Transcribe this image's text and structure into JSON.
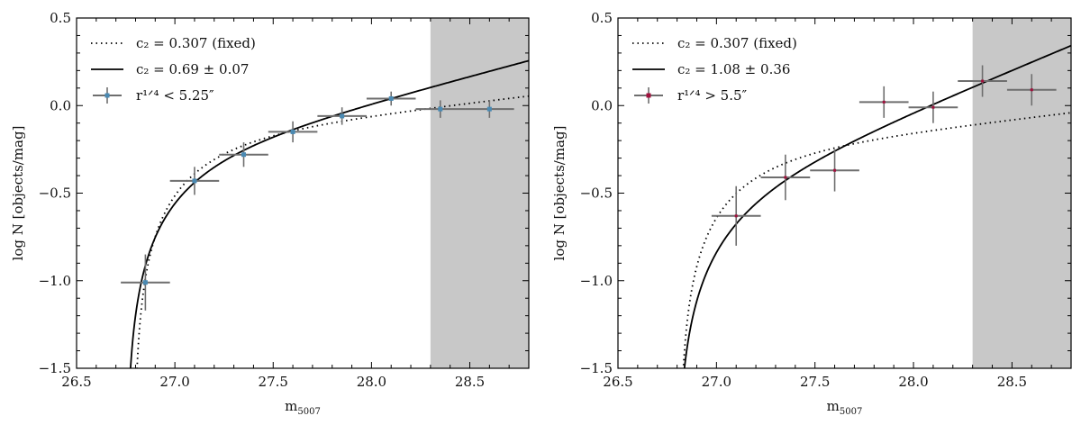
{
  "chart_data": [
    {
      "type": "scatter",
      "xlabel": "m",
      "xlabel_sub": "5007",
      "ylabel": "log N [objects/mag]",
      "xlim": [
        26.5,
        28.8
      ],
      "ylim": [
        -1.5,
        0.5
      ],
      "xticks": [
        "26.5",
        "27.0",
        "27.5",
        "28.0",
        "28.5"
      ],
      "yticks": [
        "-1.5",
        "-1.0",
        "-0.5",
        "0.0",
        "0.5"
      ],
      "grid": false,
      "legend_placement": "top-left",
      "shaded_region": {
        "x": [
          28.3,
          28.8
        ],
        "color": "#c8c8c8"
      },
      "colors": {
        "points": "#4a8ab3",
        "errorbars": "#6e6e6e",
        "lines": "#000000"
      },
      "lines": [
        {
          "style": "dotted",
          "label": "c₂ = 0.307 (fixed)",
          "c2": 0.307
        },
        {
          "style": "solid",
          "label": "c₂ = 0.69 ± 0.07",
          "c2": 0.69
        }
      ],
      "points_label": "r¹ᐟ⁴ < 5.25″",
      "points": [
        {
          "x": 26.85,
          "y": -1.01,
          "xerr": 0.125,
          "yerr": 0.16
        },
        {
          "x": 27.1,
          "y": -0.43,
          "xerr": 0.125,
          "yerr": 0.08
        },
        {
          "x": 27.35,
          "y": -0.28,
          "xerr": 0.125,
          "yerr": 0.07
        },
        {
          "x": 27.6,
          "y": -0.15,
          "xerr": 0.125,
          "yerr": 0.06
        },
        {
          "x": 27.85,
          "y": -0.06,
          "xerr": 0.125,
          "yerr": 0.05
        },
        {
          "x": 28.1,
          "y": 0.04,
          "xerr": 0.125,
          "yerr": 0.04
        },
        {
          "x": 28.35,
          "y": -0.02,
          "xerr": 0.125,
          "yerr": 0.05
        },
        {
          "x": 28.6,
          "y": -0.02,
          "xerr": 0.125,
          "yerr": 0.05
        }
      ]
    },
    {
      "type": "scatter",
      "xlabel": "m",
      "xlabel_sub": "5007",
      "ylabel": "log N [objects/mag]",
      "xlim": [
        26.5,
        28.8
      ],
      "ylim": [
        -1.5,
        0.5
      ],
      "xticks": [
        "26.5",
        "27.0",
        "27.5",
        "28.0",
        "28.5"
      ],
      "yticks": [
        "-1.5",
        "-1.0",
        "-0.5",
        "0.0",
        "0.5"
      ],
      "grid": false,
      "legend_placement": "top-left",
      "shaded_region": {
        "x": [
          28.3,
          28.8
        ],
        "color": "#c8c8c8"
      },
      "colors": {
        "points": "#a0103c",
        "errorbars": "#6e6e6e",
        "lines": "#000000"
      },
      "lines": [
        {
          "style": "dotted",
          "label": "c₂ = 0.307 (fixed)",
          "c2": 0.307
        },
        {
          "style": "solid",
          "label": "c₂ = 1.08 ± 0.36",
          "c2": 1.08
        }
      ],
      "points_label": "r¹ᐟ⁴ > 5.5″",
      "points": [
        {
          "x": 27.1,
          "y": -0.63,
          "xerr": 0.125,
          "yerr": 0.17
        },
        {
          "x": 27.35,
          "y": -0.41,
          "xerr": 0.125,
          "yerr": 0.13
        },
        {
          "x": 27.6,
          "y": -0.37,
          "xerr": 0.125,
          "yerr": 0.12
        },
        {
          "x": 27.85,
          "y": 0.02,
          "xerr": 0.125,
          "yerr": 0.09
        },
        {
          "x": 28.1,
          "y": -0.01,
          "xerr": 0.125,
          "yerr": 0.09
        },
        {
          "x": 28.35,
          "y": 0.14,
          "xerr": 0.125,
          "yerr": 0.09
        },
        {
          "x": 28.6,
          "y": 0.09,
          "xerr": 0.125,
          "yerr": 0.09
        }
      ]
    }
  ]
}
